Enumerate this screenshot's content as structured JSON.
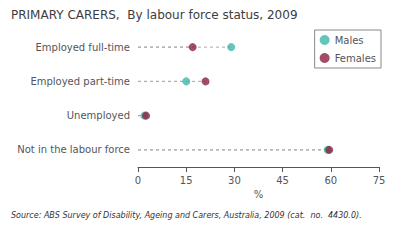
{
  "chart_data": {
    "type": "dot",
    "title": "PRIMARY CARERS,  By labour force status, 2009",
    "annotations": [
      "Source: ABS Survey of Disability, Ageing and Carers, Australia, 2009 (cat.  no.  4430.0)."
    ],
    "xlabel": "%",
    "categories": [
      "Not in the labour force",
      "Unemployed",
      "Employed part-time",
      "Employed full-time"
    ],
    "series": [
      {
        "name": "Males",
        "color": "#3CB8A8",
        "marker": "circle",
        "values": [
          59.0,
          2.0,
          15.0,
          29.0
        ]
      },
      {
        "name": "Females",
        "color": "#8B2040",
        "marker": "circle",
        "values": [
          59.5,
          2.5,
          21.0,
          17.0
        ]
      }
    ],
    "xlim": [
      0,
      75
    ],
    "xticks": [
      0,
      15,
      30,
      45,
      60,
      75
    ],
    "legend": "upper right",
    "grid": false
  }
}
